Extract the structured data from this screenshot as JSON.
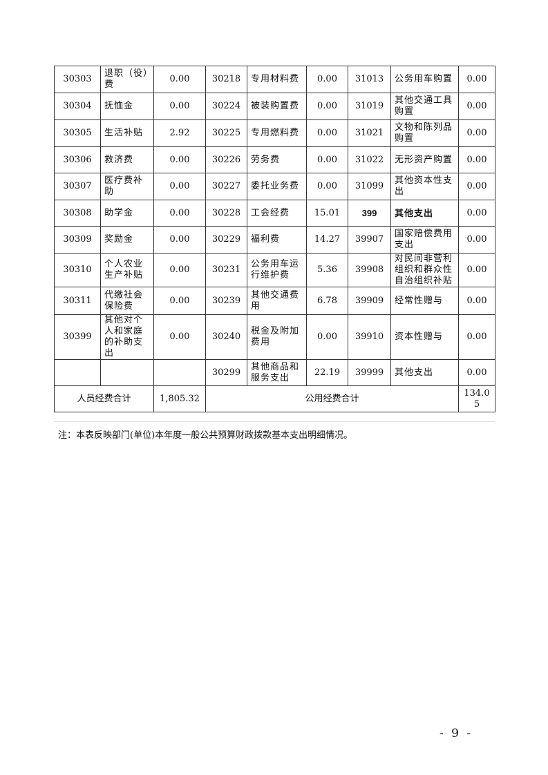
{
  "rows": [
    {
      "c1": "30303",
      "n1": "退职（役）费",
      "v1": "0.00",
      "c2": "30218",
      "n2": "专用材料费",
      "v2": "0.00",
      "c3": "31013",
      "n3": "公务用车购置",
      "v3": "0.00"
    },
    {
      "c1": "30304",
      "n1": "抚恤金",
      "v1": "0.00",
      "c2": "30224",
      "n2": "被装购置费",
      "v2": "0.00",
      "c3": "31019",
      "n3": "其他交通工具购置",
      "v3": "0.00"
    },
    {
      "c1": "30305",
      "n1": "生活补贴",
      "v1": "2.92",
      "c2": "30225",
      "n2": "专用燃料费",
      "v2": "0.00",
      "c3": "31021",
      "n3": "文物和陈列品购置",
      "v3": "0.00"
    },
    {
      "c1": "30306",
      "n1": "救济费",
      "v1": "0.00",
      "c2": "30226",
      "n2": "劳务费",
      "v2": "0.00",
      "c3": "31022",
      "n3": "无形资产购置",
      "v3": "0.00"
    },
    {
      "c1": "30307",
      "n1": "医疗费补助",
      "v1": "0.00",
      "c2": "30227",
      "n2": "委托业务费",
      "v2": "0.00",
      "c3": "31099",
      "n3": "其他资本性支出",
      "v3": "0.00"
    },
    {
      "c1": "30308",
      "n1": "助学金",
      "v1": "0.00",
      "c2": "30228",
      "n2": "工会经费",
      "v2": "15.01",
      "c3": "399",
      "n3": "其他支出",
      "v3": "0.00"
    },
    {
      "c1": "30309",
      "n1": "奖励金",
      "v1": "0.00",
      "c2": "30229",
      "n2": "福利费",
      "v2": "14.27",
      "c3": "39907",
      "n3": "国家赔偿费用支出",
      "v3": "0.00"
    },
    {
      "c1": "30310",
      "n1": "个人农业生产补贴",
      "v1": "0.00",
      "c2": "30231",
      "n2": "公务用车运行维护费",
      "v2": "5.36",
      "c3": "39908",
      "n3": "对民间非营利组织和群众性自治组织补贴",
      "v3": "0.00"
    },
    {
      "c1": "30311",
      "n1": "代缴社会保险费",
      "v1": "0.00",
      "c2": "30239",
      "n2": "其他交通费用",
      "v2": "6.78",
      "c3": "39909",
      "n3": "经常性赠与",
      "v3": "0.00"
    },
    {
      "c1": "30399",
      "n1": "其他对个人和家庭的补助支出",
      "v1": "0.00",
      "c2": "30240",
      "n2": "税金及附加费用",
      "v2": "0.00",
      "c3": "39910",
      "n3": "资本性赠与",
      "v3": "0.00"
    },
    {
      "c1": "",
      "n1": "",
      "v1": "",
      "c2": "30299",
      "n2": "其他商品和服务支出",
      "v2": "22.19",
      "c3": "39999",
      "n3": "其他支出",
      "v3": "0.00"
    }
  ],
  "totals": {
    "personnel_label": "人员经费合计",
    "personnel_value": "1,805.32",
    "public_label": "公用经费合计",
    "public_value": "134.05"
  },
  "note": "注：本表反映部门(单位)本年度一般公共预算财政拨款基本支出明细情况。",
  "page_number": "- 9 -"
}
